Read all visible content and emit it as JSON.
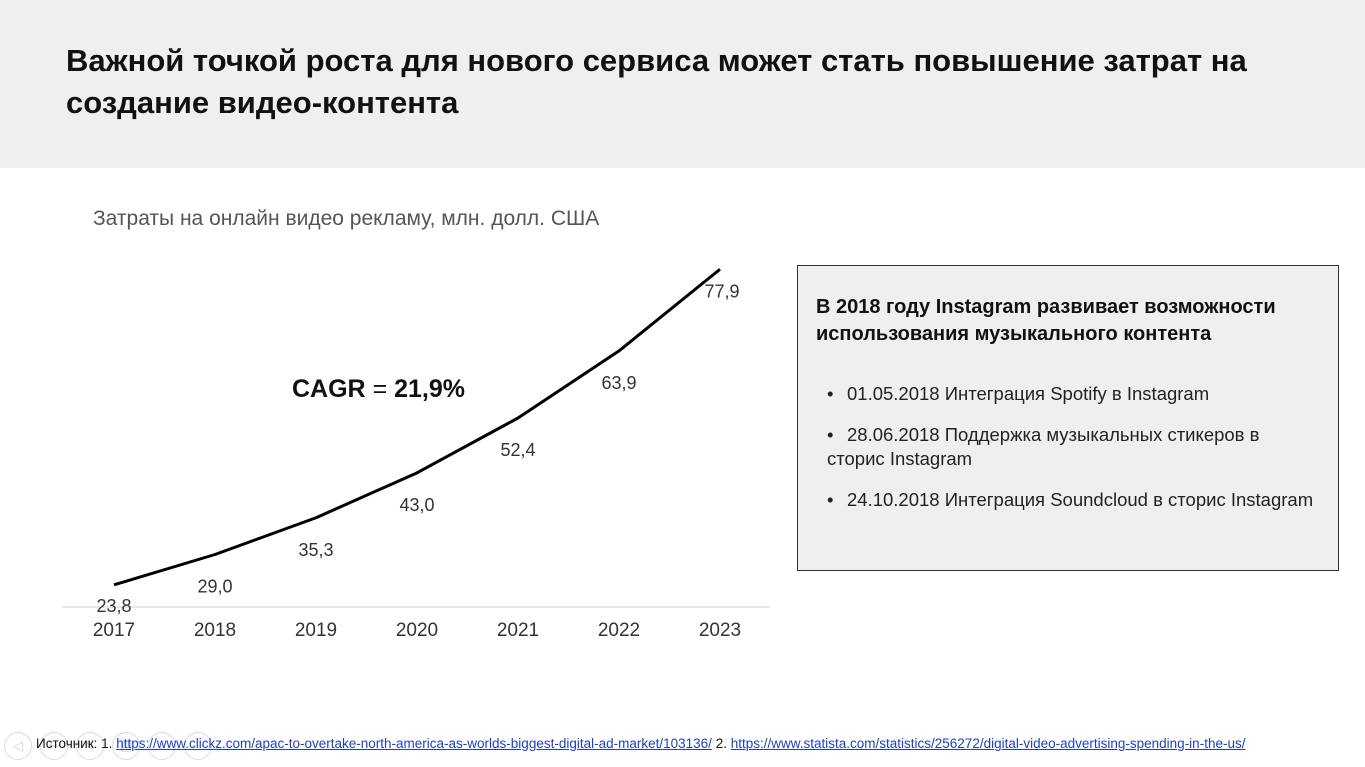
{
  "slide": {
    "title": "Важной точкой роста для нового сервиса может стать повышение затрат на создание видео-контента"
  },
  "chart_data": {
    "type": "line",
    "title": "Затраты на онлайн видео рекламу, млн. долл. США",
    "categories": [
      "2017",
      "2018",
      "2019",
      "2020",
      "2021",
      "2022",
      "2023"
    ],
    "values": [
      23.8,
      29.0,
      35.3,
      43.0,
      52.4,
      63.9,
      77.9
    ],
    "value_labels": [
      "23,8",
      "29,0",
      "35,3",
      "43,0",
      "52,4",
      "63,9",
      "77,9"
    ],
    "annotation": {
      "label": "CAGR",
      "eq": "=",
      "value": "21,9%"
    },
    "line_color": "#000000",
    "grid": false,
    "xlabel": "",
    "ylabel": ""
  },
  "info_box": {
    "heading": "В 2018 году Instagram развивает возможности использования музыкального контента",
    "items": [
      "01.05.2018 Интеграция Spotify в Instagram",
      "28.06.2018 Поддержка музыкальных стикеров в сторис Instagram",
      "24.10.2018 Интеграция Soundcloud в сторис Instagram"
    ],
    "bullet": "•"
  },
  "footer": {
    "source_label": "Источник:",
    "ref1_num": "1.",
    "ref1_url": "https://www.clickz.com/apac-to-overtake-north-america-as-worlds-biggest-digital-ad-market/103136/",
    "ref2_num": "2.",
    "ref2_url": "https://www.statista.com/statistics/256272/digital-video-advertising-spending-in-the-us/"
  },
  "nav_icons": [
    "back-icon",
    "previous-icon",
    "edit-icon",
    "slides-icon",
    "zoom-icon",
    "more-icon"
  ],
  "nav_glyphs": [
    "◁",
    "←",
    "✎",
    "▤",
    "⌕",
    "⋯"
  ]
}
